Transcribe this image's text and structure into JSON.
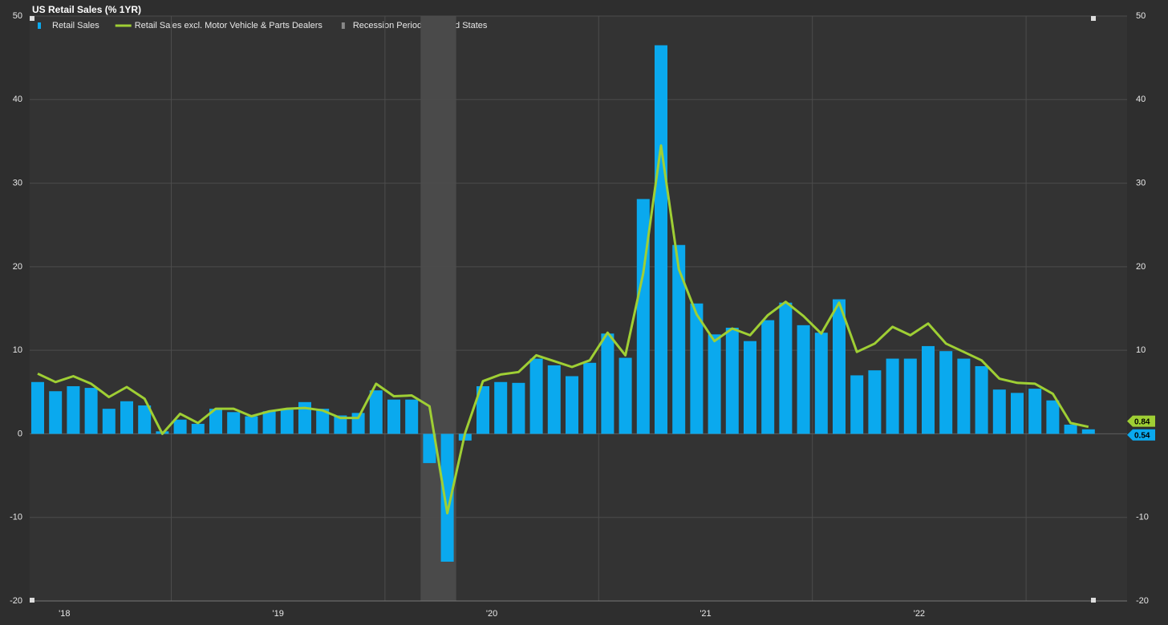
{
  "chart_data": {
    "type": "bar",
    "title": "US Retail Sales (% 1YR)",
    "categories": [
      null,
      null,
      null,
      null,
      null,
      null,
      null,
      null,
      null,
      null,
      null,
      null,
      null,
      null,
      null,
      null,
      null,
      null,
      null,
      null,
      null,
      null,
      null,
      null,
      null,
      null,
      null,
      null,
      null,
      null,
      null,
      null,
      null,
      null,
      null,
      null,
      null,
      null,
      null,
      null,
      null,
      null,
      null,
      null,
      null,
      null,
      null,
      null,
      null,
      null,
      null,
      null,
      null,
      null,
      null,
      null,
      null,
      null,
      null,
      null
    ],
    "series": [
      {
        "name": "Retail Sales",
        "type": "bar",
        "color": "#0aa9ee",
        "values": [
          6.2,
          5.1,
          5.7,
          5.5,
          3.0,
          3.9,
          3.4,
          0.3,
          1.7,
          1.2,
          3.0,
          2.6,
          2.1,
          2.7,
          2.9,
          3.8,
          3.0,
          2.2,
          2.5,
          5.2,
          4.1,
          4.1,
          -3.5,
          -15.3,
          -0.8,
          5.7,
          6.2,
          6.1,
          9.0,
          8.2,
          6.9,
          8.5,
          12.0,
          9.1,
          28.1,
          46.5,
          22.6,
          15.6,
          11.9,
          12.7,
          11.1,
          13.6,
          15.7,
          13.0,
          12.1,
          16.1,
          7.0,
          7.6,
          9.0,
          9.0,
          10.5,
          9.9,
          9.0,
          8.1,
          5.3,
          4.9,
          5.4,
          4.0,
          1.1,
          0.54
        ]
      },
      {
        "name": "Retail Sales excl. Motor Vehicle & Parts Dealers",
        "type": "line",
        "color": "#9fcf34",
        "values": [
          7.2,
          6.2,
          6.9,
          6.0,
          4.4,
          5.6,
          4.2,
          0.0,
          2.4,
          1.3,
          3.0,
          3.0,
          2.1,
          2.7,
          3.0,
          3.1,
          2.8,
          1.9,
          1.9,
          6.0,
          4.5,
          4.6,
          3.3,
          -9.5,
          0.1,
          6.3,
          7.1,
          7.4,
          9.4,
          8.7,
          8.0,
          8.8,
          12.1,
          9.4,
          19.2,
          34.5,
          19.7,
          14.3,
          11.1,
          12.6,
          11.8,
          14.2,
          15.8,
          14.1,
          12.0,
          15.7,
          9.8,
          10.8,
          12.8,
          11.8,
          13.2,
          10.8,
          9.8,
          8.8,
          6.6,
          6.1,
          6.0,
          4.8,
          1.3,
          0.84
        ]
      }
    ],
    "recession": {
      "name": "Recession Periods - United States",
      "color": "#4a4a4a",
      "start": 21.5,
      "end": 23.5
    },
    "ylim": [
      -20,
      50
    ],
    "yticks": [
      -20,
      -10,
      0,
      10,
      20,
      30,
      40,
      50
    ],
    "y2lim": [
      -20,
      50
    ],
    "y2ticks": [
      -20,
      -10,
      0,
      10,
      20,
      30,
      40,
      50
    ],
    "xticks": [
      {
        "value": 1.5,
        "label": "'18"
      },
      {
        "value": 13.5,
        "label": "'19"
      },
      {
        "value": 25.5,
        "label": "'20"
      },
      {
        "value": 37.5,
        "label": "'21"
      },
      {
        "value": 49.5,
        "label": "'22"
      }
    ],
    "xgrid": [
      7.5,
      19.5,
      31.5,
      43.5,
      55.5
    ],
    "grid": true
  }
}
